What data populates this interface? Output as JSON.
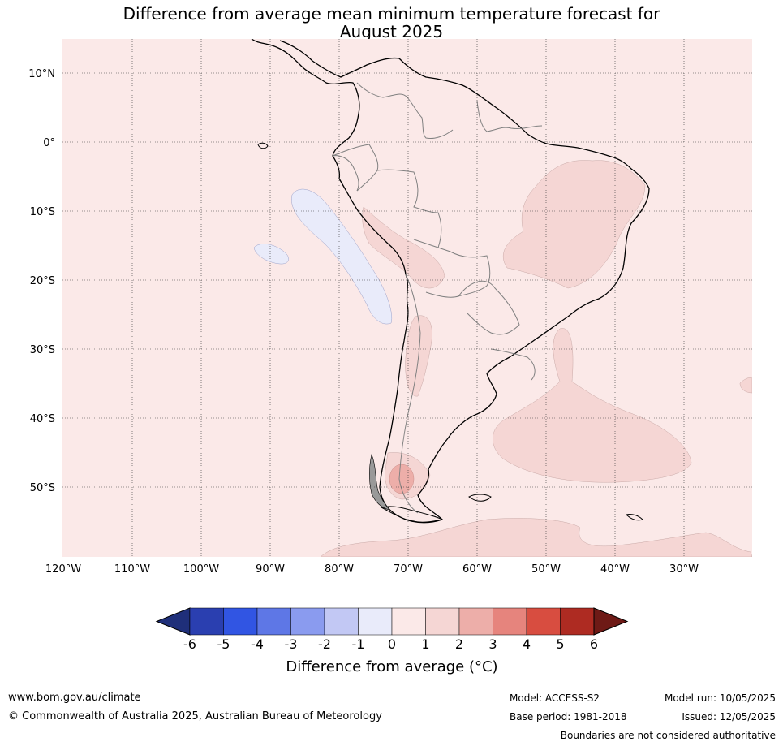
{
  "title": {
    "line1": "Difference from average mean minimum temperature forecast for",
    "line2": "August 2025"
  },
  "map": {
    "latitude_labels": [
      "10°N",
      "0°",
      "10°S",
      "20°S",
      "30°S",
      "40°S",
      "50°S"
    ],
    "longitude_labels": [
      "120°W",
      "110°W",
      "100°W",
      "90°W",
      "80°W",
      "70°W",
      "60°W",
      "50°W",
      "40°W",
      "30°W"
    ],
    "colors": {
      "background_anomaly_0_1": "#fbe9e8",
      "anomaly_1_2": "#f5d6d4",
      "anomaly_2_3": "#edaea9",
      "anomaly_neg1_0": "#e9ebfa",
      "coastline": "#000000",
      "borders": "#808080",
      "gridlines": "#333333"
    }
  },
  "colorbar": {
    "tick_labels": [
      "-6",
      "-5",
      "-4",
      "-3",
      "-2",
      "-1",
      "0",
      "1",
      "2",
      "3",
      "4",
      "5",
      "6"
    ],
    "colors": [
      "#1f2f7a",
      "#2a3fb0",
      "#3155e3",
      "#5e77e6",
      "#8a9bef",
      "#c2c8f4",
      "#e9ebfa",
      "#fbe9e8",
      "#f5d6d4",
      "#edaea9",
      "#e6847d",
      "#d84d40",
      "#ae2b22",
      "#6e1a16"
    ],
    "label": "Difference from average (°C)"
  },
  "footer": {
    "website": "www.bom.gov.au/climate",
    "copyright": "© Commonwealth of Australia 2025, Australian Bureau of Meteorology",
    "model": "Model: ACCESS-S2",
    "base_period": "Base period: 1981-2018",
    "model_run": "Model run: 10/05/2025",
    "issued": "Issued: 12/05/2025",
    "disclaimer": "Boundaries are not considered authoritative"
  }
}
